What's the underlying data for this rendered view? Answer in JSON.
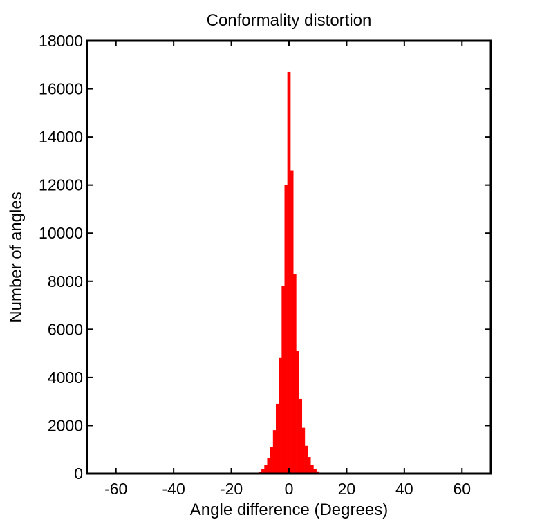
{
  "chart_data": {
    "type": "histogram",
    "title": "Conformality distortion",
    "xlabel": "Angle difference (Degrees)",
    "ylabel": "Number of angles",
    "xlim": [
      -70,
      70
    ],
    "ylim": [
      0,
      18000
    ],
    "x_ticks": [
      -60,
      -40,
      -20,
      0,
      20,
      40,
      60
    ],
    "x_tick_labels": [
      "-60",
      "-40",
      "-20",
      "0",
      "20",
      "40",
      "60"
    ],
    "y_ticks": [
      0,
      2000,
      4000,
      6000,
      8000,
      10000,
      12000,
      14000,
      16000,
      18000
    ],
    "y_tick_labels": [
      "0",
      "2000",
      "4000",
      "6000",
      "8000",
      "10000",
      "12000",
      "14000",
      "16000",
      "18000"
    ],
    "grid": false,
    "bar_color": "#ff0000",
    "series": [
      {
        "x": [
          -12,
          -11,
          -10,
          -9,
          -8,
          -7,
          -6,
          -5,
          -4,
          -3,
          -2,
          -1,
          0,
          1,
          2,
          3,
          4,
          5,
          6,
          7,
          8,
          9,
          10,
          11,
          12
        ],
        "values": [
          10,
          30,
          80,
          180,
          350,
          650,
          1100,
          1800,
          2900,
          4800,
          7800,
          12000,
          16700,
          12600,
          8300,
          5100,
          3100,
          1900,
          1150,
          680,
          360,
          190,
          85,
          35,
          12
        ]
      }
    ]
  }
}
